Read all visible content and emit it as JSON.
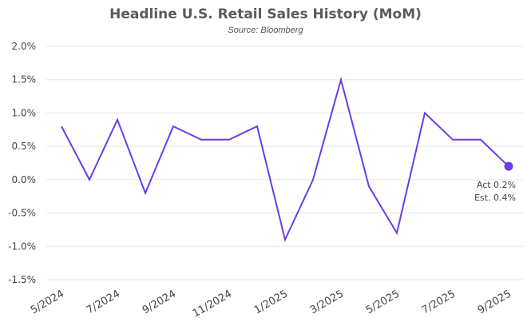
{
  "chart_data": {
    "type": "line",
    "title": "Headline U.S. Retail Sales History (MoM)",
    "subtitle": "Source: Bloomberg",
    "xlabel": "",
    "ylabel": "",
    "x": [
      "5/2024",
      "6/2024",
      "7/2024",
      "8/2024",
      "9/2024",
      "10/2024",
      "11/2024",
      "12/2024",
      "1/2025",
      "2/2025",
      "3/2025",
      "4/2025",
      "5/2025",
      "6/2025",
      "7/2025",
      "8/2025",
      "9/2025"
    ],
    "x_tick_labels": [
      "5/2024",
      "7/2024",
      "9/2024",
      "11/2024",
      "1/2025",
      "3/2025",
      "5/2025",
      "7/2025",
      "9/2025"
    ],
    "series": [
      {
        "values": [
          0.8,
          0.0,
          0.9,
          -0.2,
          0.8,
          0.6,
          0.6,
          0.8,
          -0.9,
          0.0,
          1.5,
          -0.1,
          -0.8,
          1.0,
          0.6,
          0.6,
          0.2
        ]
      }
    ],
    "y_tick_labels": [
      "2.0%",
      "1.5%",
      "1.0%",
      "0.5%",
      "0.0%",
      "-0.5%",
      "-1.0%",
      "-1.5%"
    ],
    "ylim": [
      -1.5,
      2.0
    ],
    "grid": "horizontal",
    "line_color": "#6a3de8",
    "annotation": {
      "actual": "Act 0.2%",
      "estimate": "Est. 0.4%"
    }
  }
}
